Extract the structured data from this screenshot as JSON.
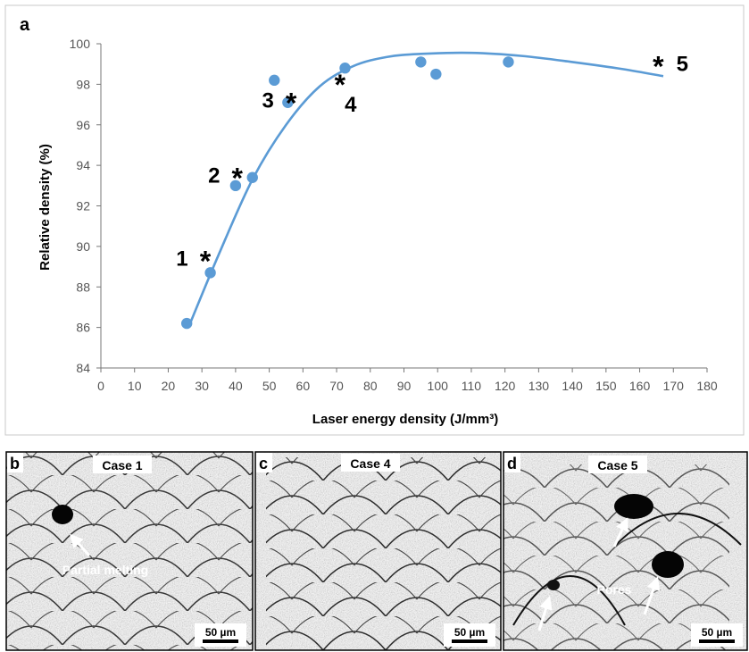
{
  "panels": {
    "a": {
      "letter": "a"
    },
    "b": {
      "letter": "b",
      "case_label": "Case 1",
      "annotation": "Partial melting",
      "scale_bar": "50 µm"
    },
    "c": {
      "letter": "c",
      "case_label": "Case 4",
      "scale_bar": "50 µm"
    },
    "d": {
      "letter": "d",
      "case_label": "Case 5",
      "annotation": "Pores",
      "scale_bar": "50 µm"
    }
  },
  "chart_data": {
    "type": "scatter",
    "title": "",
    "xlabel": "Laser energy density (J/mm³)",
    "ylabel": "Relative density (%)",
    "xlim": [
      0,
      180
    ],
    "ylim": [
      84,
      100
    ],
    "x_ticks": [
      0,
      10,
      20,
      30,
      40,
      50,
      60,
      70,
      80,
      90,
      100,
      110,
      120,
      130,
      140,
      150,
      160,
      170,
      180
    ],
    "y_ticks": [
      84,
      86,
      88,
      90,
      92,
      94,
      96,
      98,
      100
    ],
    "grid": false,
    "legend": "none",
    "point_color": "#5b9bd5",
    "curve_color": "#5b9bd5",
    "points": [
      {
        "x": 25.5,
        "y": 86.2
      },
      {
        "x": 32.5,
        "y": 88.7
      },
      {
        "x": 40,
        "y": 93.0
      },
      {
        "x": 45,
        "y": 93.4
      },
      {
        "x": 51.5,
        "y": 98.2
      },
      {
        "x": 55.5,
        "y": 97.1
      },
      {
        "x": 72.5,
        "y": 98.8
      },
      {
        "x": 95,
        "y": 99.1
      },
      {
        "x": 99.5,
        "y": 98.5
      },
      {
        "x": 121,
        "y": 99.1
      }
    ],
    "fit_curve": [
      {
        "x": 26.5,
        "y": 86.2
      },
      {
        "x": 35,
        "y": 89.6
      },
      {
        "x": 45,
        "y": 93.3
      },
      {
        "x": 55,
        "y": 96.0
      },
      {
        "x": 65,
        "y": 97.9
      },
      {
        "x": 75,
        "y": 98.9
      },
      {
        "x": 85,
        "y": 99.35
      },
      {
        "x": 95,
        "y": 99.5
      },
      {
        "x": 110,
        "y": 99.55
      },
      {
        "x": 125,
        "y": 99.4
      },
      {
        "x": 140,
        "y": 99.1
      },
      {
        "x": 155,
        "y": 98.75
      },
      {
        "x": 167,
        "y": 98.4
      }
    ],
    "case_markers": [
      {
        "label": "1",
        "x": 31,
        "y": 89.4,
        "label_side": "left"
      },
      {
        "label": "2",
        "x": 40.5,
        "y": 93.5,
        "label_side": "left"
      },
      {
        "label": "3",
        "x": 56.5,
        "y": 97.2,
        "label_side": "left"
      },
      {
        "label": "4",
        "x": 71,
        "y": 98.1,
        "label_side": "below-right"
      },
      {
        "label": "5",
        "x": 165.5,
        "y": 99.0,
        "label_side": "right"
      }
    ]
  }
}
